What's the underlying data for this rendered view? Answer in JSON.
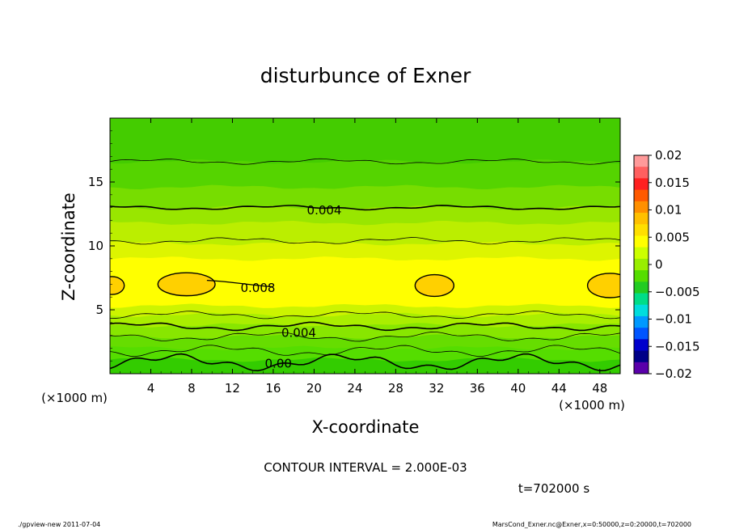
{
  "chart_data": {
    "type": "heatmap",
    "title": "disturbunce of Exner",
    "xlabel": "X-coordinate",
    "ylabel": "Z-coordinate",
    "x_unit": "(×1000 m)",
    "x_unit_right": "(×1000 m)",
    "x_ticks": [
      4,
      8,
      12,
      16,
      20,
      24,
      28,
      32,
      36,
      40,
      44,
      48
    ],
    "y_ticks": [
      5,
      10,
      15
    ],
    "xlim": [
      0,
      50
    ],
    "ylim": [
      0,
      20
    ],
    "contour_interval_text": "CONTOUR INTERVAL = 2.000E-03",
    "time_text": "t=702000 s",
    "contour_labels": [
      {
        "text": "0.004",
        "x": 21,
        "z": 12.8
      },
      {
        "text": "0.008",
        "x": 14.5,
        "z": 6.7
      },
      {
        "text": "0.004",
        "x": 18.5,
        "z": 3.2
      },
      {
        "text": "0.00",
        "x": 16.5,
        "z": 0.8
      }
    ],
    "colorbar": {
      "levels": [
        0.02,
        0.015,
        0.01,
        0.005,
        0,
        -0.005,
        -0.01,
        -0.015,
        -0.02
      ],
      "labels": [
        "0.02",
        "0.015",
        "0.01",
        "0.005",
        "0",
        "−0.005",
        "−0.01",
        "−0.015",
        "−0.02"
      ],
      "colors_top_to_bottom": [
        "#ff9a9a",
        "#ff6060",
        "#ff2020",
        "#ff5a00",
        "#ff9000",
        "#ffc000",
        "#ffdf00",
        "#ffff00",
        "#ccff00",
        "#99ee00",
        "#55dd00",
        "#22cc22",
        "#00dd88",
        "#00dddd",
        "#0099ff",
        "#0055ff",
        "#0000cc",
        "#000088",
        "#5a00aa"
      ]
    },
    "bands_bottom_to_top": [
      {
        "z": [
          0,
          1.1
        ],
        "color": "#33cc00"
      },
      {
        "z": [
          1.1,
          2.0
        ],
        "color": "#55dd00"
      },
      {
        "z": [
          2.0,
          2.9
        ],
        "color": "#66dd00"
      },
      {
        "z": [
          2.9,
          3.8
        ],
        "color": "#88e600"
      },
      {
        "z": [
          3.8,
          4.6
        ],
        "color": "#aaee00"
      },
      {
        "z": [
          4.6,
          5.3
        ],
        "color": "#ccf400"
      },
      {
        "z": [
          5.3,
          9.0
        ],
        "color": "#ffff00"
      },
      {
        "z": [
          9.0,
          10.2
        ],
        "color": "#ddf500"
      },
      {
        "z": [
          10.2,
          11.8
        ],
        "color": "#bbee00"
      },
      {
        "z": [
          11.8,
          13.0
        ],
        "color": "#99e600"
      },
      {
        "z": [
          13.0,
          14.6
        ],
        "color": "#77dd00"
      },
      {
        "z": [
          14.6,
          16.6
        ],
        "color": "#55d400"
      },
      {
        "z": [
          16.6,
          20.0
        ],
        "color": "#44cc00"
      }
    ],
    "blobs": [
      {
        "cx": 7.5,
        "cz": 7.0,
        "rx": 2.8,
        "rz": 0.9
      },
      {
        "cx": 31.8,
        "cz": 6.9,
        "rx": 1.9,
        "rz": 0.85
      },
      {
        "cx": 49.0,
        "cz": 6.9,
        "rx": 2.2,
        "rz": 0.95
      },
      {
        "cx": 0.2,
        "cz": 6.9,
        "rx": 1.2,
        "rz": 0.7
      }
    ],
    "blob_color": "#ffd000",
    "grid": false,
    "legend": "right"
  },
  "footer": {
    "left": "./gpview-new   2011-07-04",
    "right": "MarsCond_Exner.nc@Exner,x=0:50000,z=0:20000,t=702000"
  }
}
